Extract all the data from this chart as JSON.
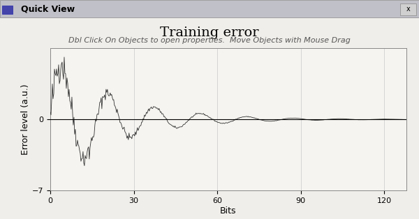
{
  "title": "Training error",
  "subtitle": "Dbl Click On Objects to open properties.  Move Objects with Mouse Drag",
  "xlabel": "Bits",
  "ylabel": "Error level (a.u.)",
  "xlim": [
    0,
    128
  ],
  "ylim": [
    -7,
    7
  ],
  "yticks": [
    -7,
    0
  ],
  "xticks": [
    0,
    30,
    60,
    90,
    120
  ],
  "bg_color": "#f0eeea",
  "plot_bg_color": "#f5f4f0",
  "grid_color": "#c8c8c8",
  "line_color": "#333333",
  "title_fontsize": 14,
  "subtitle_fontsize": 8,
  "label_fontsize": 9,
  "tick_fontsize": 8,
  "n_points": 128,
  "decay_rate": 0.045,
  "freq": 1.8,
  "noise_scale": 0.3,
  "window_title": "Quick View"
}
